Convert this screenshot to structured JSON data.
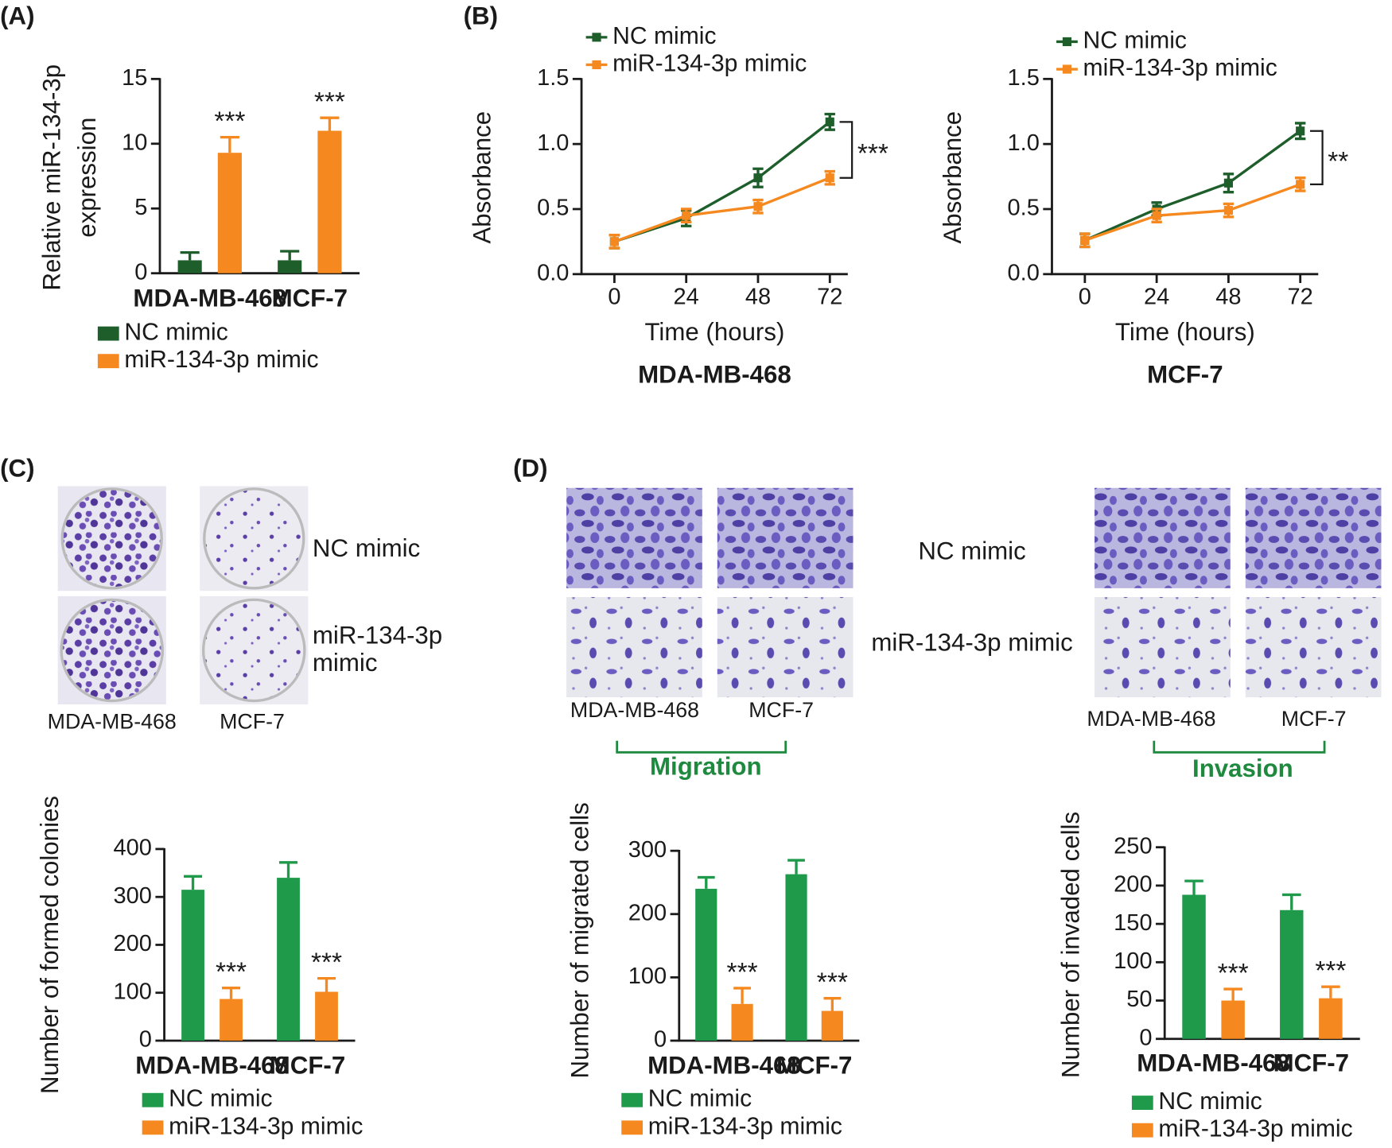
{
  "panel_labels": [
    "(A)",
    "(B)",
    "(C)",
    "(D)"
  ],
  "colony_images": {
    "rows": [
      "NC mimic",
      [
        "miR-134-3p",
        "mimic"
      ]
    ],
    "columns": [
      "MDA-MB-468",
      "MCF-7"
    ]
  },
  "transwell_images": {
    "rows": [
      "NC mimic",
      "miR-134-3p mimic"
    ],
    "groups": [
      {
        "name": "Migration",
        "columns": [
          "MDA-MB-468",
          "MCF-7"
        ]
      },
      {
        "name": "Invasion",
        "columns": [
          "MDA-MB-468",
          "MCF-7"
        ]
      }
    ]
  },
  "chart_data": [
    {
      "type": "bar",
      "ylabel": [
        "Relative miR-134-3p",
        "expression"
      ],
      "categories": [
        "MDA-MB-468",
        "MCF-7"
      ],
      "series": [
        {
          "name": "NC mimic",
          "color": "#1d5e2b",
          "values": [
            1,
            1
          ],
          "errors": [
            0.6,
            0.7
          ]
        },
        {
          "name": "miR-134-3p mimic",
          "color": "#f5891f",
          "values": [
            9.3,
            11
          ],
          "errors": [
            1.2,
            1.0
          ]
        }
      ],
      "significance": [
        "***",
        "***"
      ],
      "ylim": [
        0,
        15
      ],
      "yticks": [
        0,
        5,
        10,
        15
      ]
    },
    {
      "type": "line",
      "title": "MDA-MB-468",
      "xlabel": "Time (hours)",
      "ylabel": "Absorbance",
      "x": [
        0,
        24,
        48,
        72
      ],
      "series": [
        {
          "name": "NC mimic",
          "color": "#1d5e2b",
          "values": [
            0.25,
            0.43,
            0.74,
            1.17
          ],
          "errors": [
            0.05,
            0.06,
            0.07,
            0.06
          ]
        },
        {
          "name": "miR-134-3p mimic",
          "color": "#f5891f",
          "values": [
            0.25,
            0.45,
            0.52,
            0.74
          ],
          "errors": [
            0.05,
            0.05,
            0.05,
            0.05
          ]
        }
      ],
      "significance": "***",
      "xlim": [
        -11,
        78
      ],
      "xticks": [
        0,
        24,
        48,
        72
      ],
      "ylim": [
        0,
        1.5
      ],
      "yticks": [
        {
          "value": 0,
          "label": "0.0"
        },
        {
          "value": 0.5,
          "label": "0.5"
        },
        {
          "value": 1,
          "label": "1.0"
        },
        {
          "value": 1.5,
          "label": "1.5"
        }
      ]
    },
    {
      "type": "line",
      "title": "MCF-7",
      "xlabel": "Time (hours)",
      "ylabel": "Absorbance",
      "x": [
        0,
        24,
        48,
        72
      ],
      "series": [
        {
          "name": "NC mimic",
          "color": "#1d5e2b",
          "values": [
            0.26,
            0.5,
            0.7,
            1.1
          ],
          "errors": [
            0.05,
            0.05,
            0.07,
            0.06
          ]
        },
        {
          "name": "miR-134-3p mimic",
          "color": "#f5891f",
          "values": [
            0.26,
            0.45,
            0.49,
            0.69
          ],
          "errors": [
            0.05,
            0.05,
            0.05,
            0.05
          ]
        }
      ],
      "significance": "**",
      "xlim": [
        -11,
        78
      ],
      "xticks": [
        0,
        24,
        48,
        72
      ],
      "ylim": [
        0,
        1.5
      ],
      "yticks": [
        {
          "value": 0,
          "label": "0.0"
        },
        {
          "value": 0.5,
          "label": "0.5"
        },
        {
          "value": 1,
          "label": "1.0"
        },
        {
          "value": 1.5,
          "label": "1.5"
        }
      ]
    },
    {
      "type": "bar",
      "ylabel": "Number of formed colonies",
      "categories": [
        "MDA-MB-468",
        "MCF-7"
      ],
      "series": [
        {
          "name": "NC mimic",
          "color": "#1f9a4b",
          "values": [
            315,
            340
          ],
          "errors": [
            28,
            32
          ]
        },
        {
          "name": "miR-134-3p mimic",
          "color": "#f5891f",
          "values": [
            87,
            102
          ],
          "errors": [
            23,
            28
          ]
        }
      ],
      "significance": [
        "***",
        "***"
      ],
      "ylim": [
        0,
        400
      ],
      "yticks": [
        0,
        100,
        200,
        300,
        400
      ]
    },
    {
      "type": "bar",
      "ylabel": "Number of migrated cells",
      "categories": [
        "MDA-MB-468",
        "MCF-7"
      ],
      "series": [
        {
          "name": "NC mimic",
          "color": "#1f9a4b",
          "values": [
            240,
            263
          ],
          "errors": [
            18,
            22
          ]
        },
        {
          "name": "miR-134-3p mimic",
          "color": "#f5891f",
          "values": [
            58,
            47
          ],
          "errors": [
            25,
            20
          ]
        }
      ],
      "significance": [
        "***",
        "***"
      ],
      "ylim": [
        0,
        300
      ],
      "yticks": [
        0,
        100,
        200,
        300
      ]
    },
    {
      "type": "bar",
      "ylabel": "Number of invaded cells",
      "categories": [
        "MDA-MB-468",
        "MCF-7"
      ],
      "series": [
        {
          "name": "NC mimic",
          "color": "#1f9a4b",
          "values": [
            188,
            168
          ],
          "errors": [
            18,
            20
          ]
        },
        {
          "name": "miR-134-3p mimic",
          "color": "#f5891f",
          "values": [
            50,
            53
          ],
          "errors": [
            15,
            15
          ]
        }
      ],
      "significance": [
        "***",
        "***"
      ],
      "ylim": [
        0,
        250
      ],
      "yticks": [
        0,
        50,
        100,
        150,
        200,
        250
      ]
    }
  ]
}
